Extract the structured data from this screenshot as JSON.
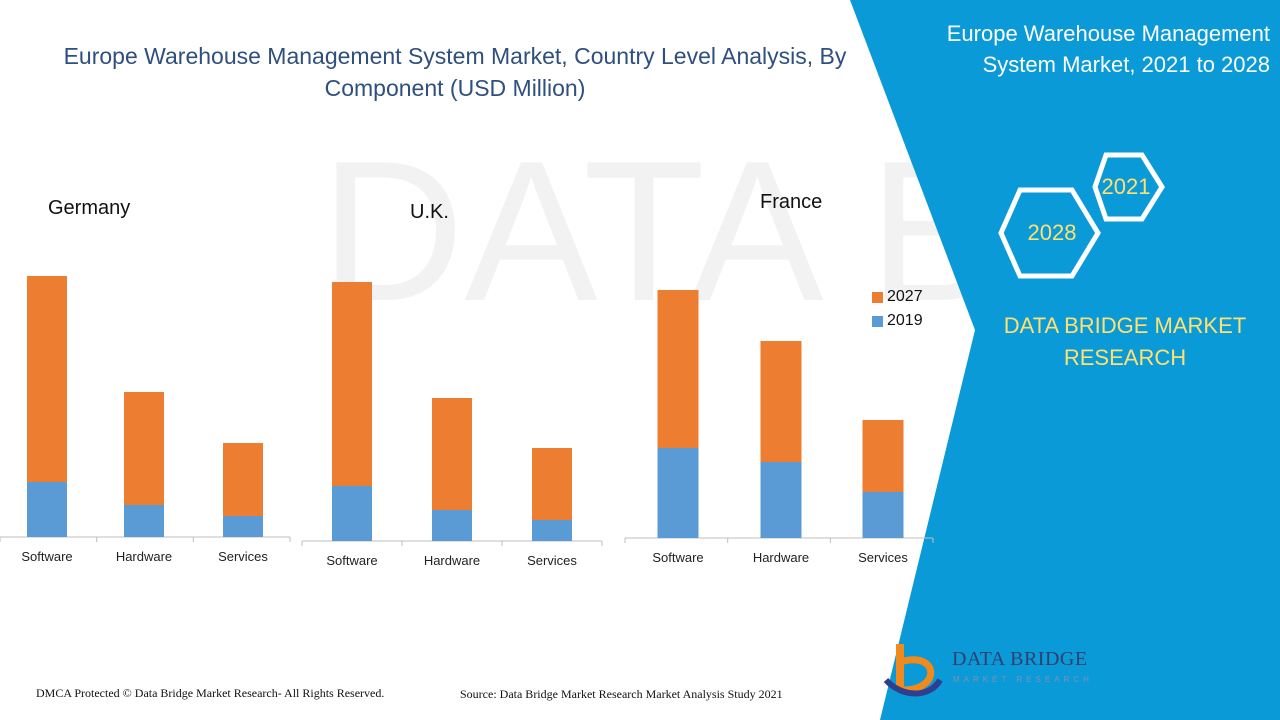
{
  "title": "Europe Warehouse Management System Market, Country Level Analysis, By Component (USD Million)",
  "side_panel": {
    "title": "Europe Warehouse Management System Market, 2021 to 2028",
    "hex_top": "2021",
    "hex_bottom": "2028",
    "brand": "DATA BRIDGE MARKET RESEARCH"
  },
  "watermark": "DATA BRIDGE",
  "logo": {
    "name": "DATA BRIDGE",
    "sub": "MARKET RESEARCH"
  },
  "footer": {
    "left": "DMCA Protected © Data Bridge Market Research- All Rights Reserved.",
    "source": "Source: Data Bridge Market Research Market Analysis Study 2021"
  },
  "colors": {
    "series_2019": "#5b9bd5",
    "series_2027": "#ed7d31",
    "panel_blue": "#0a9ad8",
    "title_blue": "#2f4f7f",
    "brand_yellow": "#ffe070"
  },
  "legend": {
    "items": [
      "2027",
      "2019"
    ]
  },
  "chart_data": [
    {
      "type": "bar",
      "stacked": true,
      "title": "Germany",
      "categories": [
        "Software",
        "Hardware",
        "Services"
      ],
      "series": [
        {
          "name": "2019",
          "values": [
            55,
            32,
            21
          ]
        },
        {
          "name": "2027",
          "values": [
            206,
            113,
            73
          ]
        }
      ],
      "ylim": [
        0,
        280
      ]
    },
    {
      "type": "bar",
      "stacked": true,
      "title": "U.K.",
      "categories": [
        "Software",
        "Hardware",
        "Services"
      ],
      "series": [
        {
          "name": "2019",
          "values": [
            55,
            31,
            21
          ]
        },
        {
          "name": "2027",
          "values": [
            204,
            112,
            72
          ]
        }
      ],
      "ylim": [
        0,
        280
      ]
    },
    {
      "type": "bar",
      "stacked": true,
      "title": "France",
      "categories": [
        "Software",
        "Hardware",
        "Services"
      ],
      "series": [
        {
          "name": "2019",
          "values": [
            90,
            76,
            46
          ]
        },
        {
          "name": "2027",
          "values": [
            158,
            121,
            72
          ]
        }
      ],
      "ylim": [
        0,
        280
      ]
    }
  ]
}
